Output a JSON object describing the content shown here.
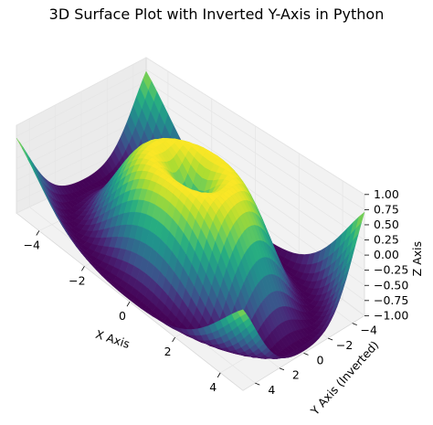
{
  "chart_data": {
    "type": "surface",
    "title": "3D Surface Plot with Inverted Y-Axis in Python",
    "xlabel": "X Axis",
    "ylabel": "Y Axis (Inverted)",
    "zlabel": "Z Axis",
    "function": "z = sin(sqrt(x^2 + y^2))",
    "x_range": [
      -5,
      5
    ],
    "y_range": [
      -5,
      5
    ],
    "zlim": [
      -1.0,
      1.0
    ],
    "y_axis_inverted": true,
    "colormap": "viridis",
    "grid": true,
    "x_ticks": [
      "−4",
      "−2",
      "0",
      "2",
      "4"
    ],
    "y_ticks": [
      "−4",
      "−2",
      "0",
      "2",
      "4"
    ],
    "z_ticks": [
      "−1.00",
      "−0.75",
      "−0.50",
      "−0.25",
      "0.00",
      "0.25",
      "0.50",
      "0.75",
      "1.00"
    ],
    "x_tick_values": [
      -4,
      -2,
      0,
      2,
      4
    ],
    "y_tick_values": [
      -4,
      -2,
      0,
      2,
      4
    ],
    "z_tick_values": [
      -1.0,
      -0.75,
      -0.5,
      -0.25,
      0.0,
      0.25,
      0.5,
      0.75,
      1.0
    ]
  },
  "colors": {
    "pane_fill": "#f2f2f2",
    "pane_edge": "#d9d9d9",
    "grid": "#e6e6e6",
    "text": "#000000",
    "viridis_low": "#440154",
    "viridis_mid": "#21918c",
    "viridis_high": "#fde725"
  }
}
